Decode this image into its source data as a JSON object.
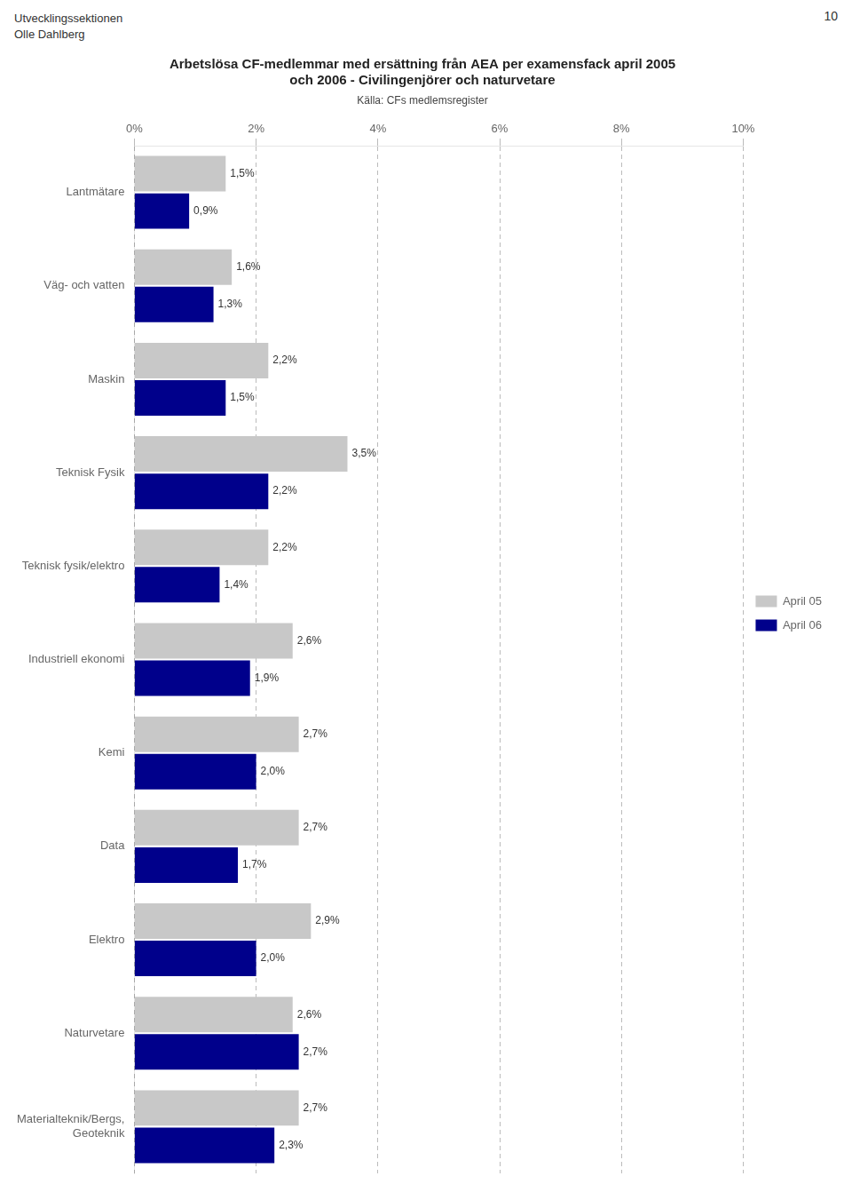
{
  "chart_data": {
    "type": "bar",
    "orientation": "horizontal",
    "title": [
      "Arbetslösa CF-medlemmar med ersättning från AEA per examensfack april 2005",
      "och 2006 - Civilingenjörer och naturvetare"
    ],
    "subtitle": "Källa: CFs medlemsregister",
    "annotations": [
      "Utvecklingssektionen",
      "Olle Dahlberg",
      "10"
    ],
    "categories": [
      "Lantmätare",
      "Väg- och vatten",
      "Maskin",
      "Teknisk Fysik",
      "Teknisk fysik/elektro",
      "Industriell ekonomi",
      "Kemi",
      "Data",
      "Elektro",
      "Naturvetare",
      "Materialteknik/Bergs,\nGeoteknik"
    ],
    "series": [
      {
        "name": "April 05",
        "color": "#c8c8c8",
        "values": [
          1.5,
          1.6,
          2.2,
          3.5,
          2.2,
          2.6,
          2.7,
          2.7,
          2.9,
          2.6,
          2.7
        ],
        "value_labels": [
          "1,5%",
          "1,6%",
          "2,2%",
          "3,5%",
          "2,2%",
          "2,6%",
          "2,7%",
          "2,7%",
          "2,9%",
          "2,6%",
          "2,7%"
        ]
      },
      {
        "name": "April 06",
        "color": "#00008B",
        "values": [
          0.9,
          1.3,
          1.5,
          2.2,
          1.4,
          1.9,
          2.0,
          1.7,
          2.0,
          2.7,
          2.3
        ],
        "value_labels": [
          "0,9%",
          "1,3%",
          "1,5%",
          "2,2%",
          "1,4%",
          "1,9%",
          "2,0%",
          "1,7%",
          "2,0%",
          "2,7%",
          "2,3%"
        ]
      }
    ],
    "xlim": [
      0,
      10
    ],
    "xticks": [
      {
        "value": 0,
        "label": "0%"
      },
      {
        "value": 2,
        "label": "2%"
      },
      {
        "value": 4,
        "label": "4%"
      },
      {
        "value": 6,
        "label": "6%"
      },
      {
        "value": 8,
        "label": "8%"
      },
      {
        "value": 10,
        "label": "10%"
      }
    ],
    "grid": true,
    "legend": "right",
    "data_labels": true
  }
}
